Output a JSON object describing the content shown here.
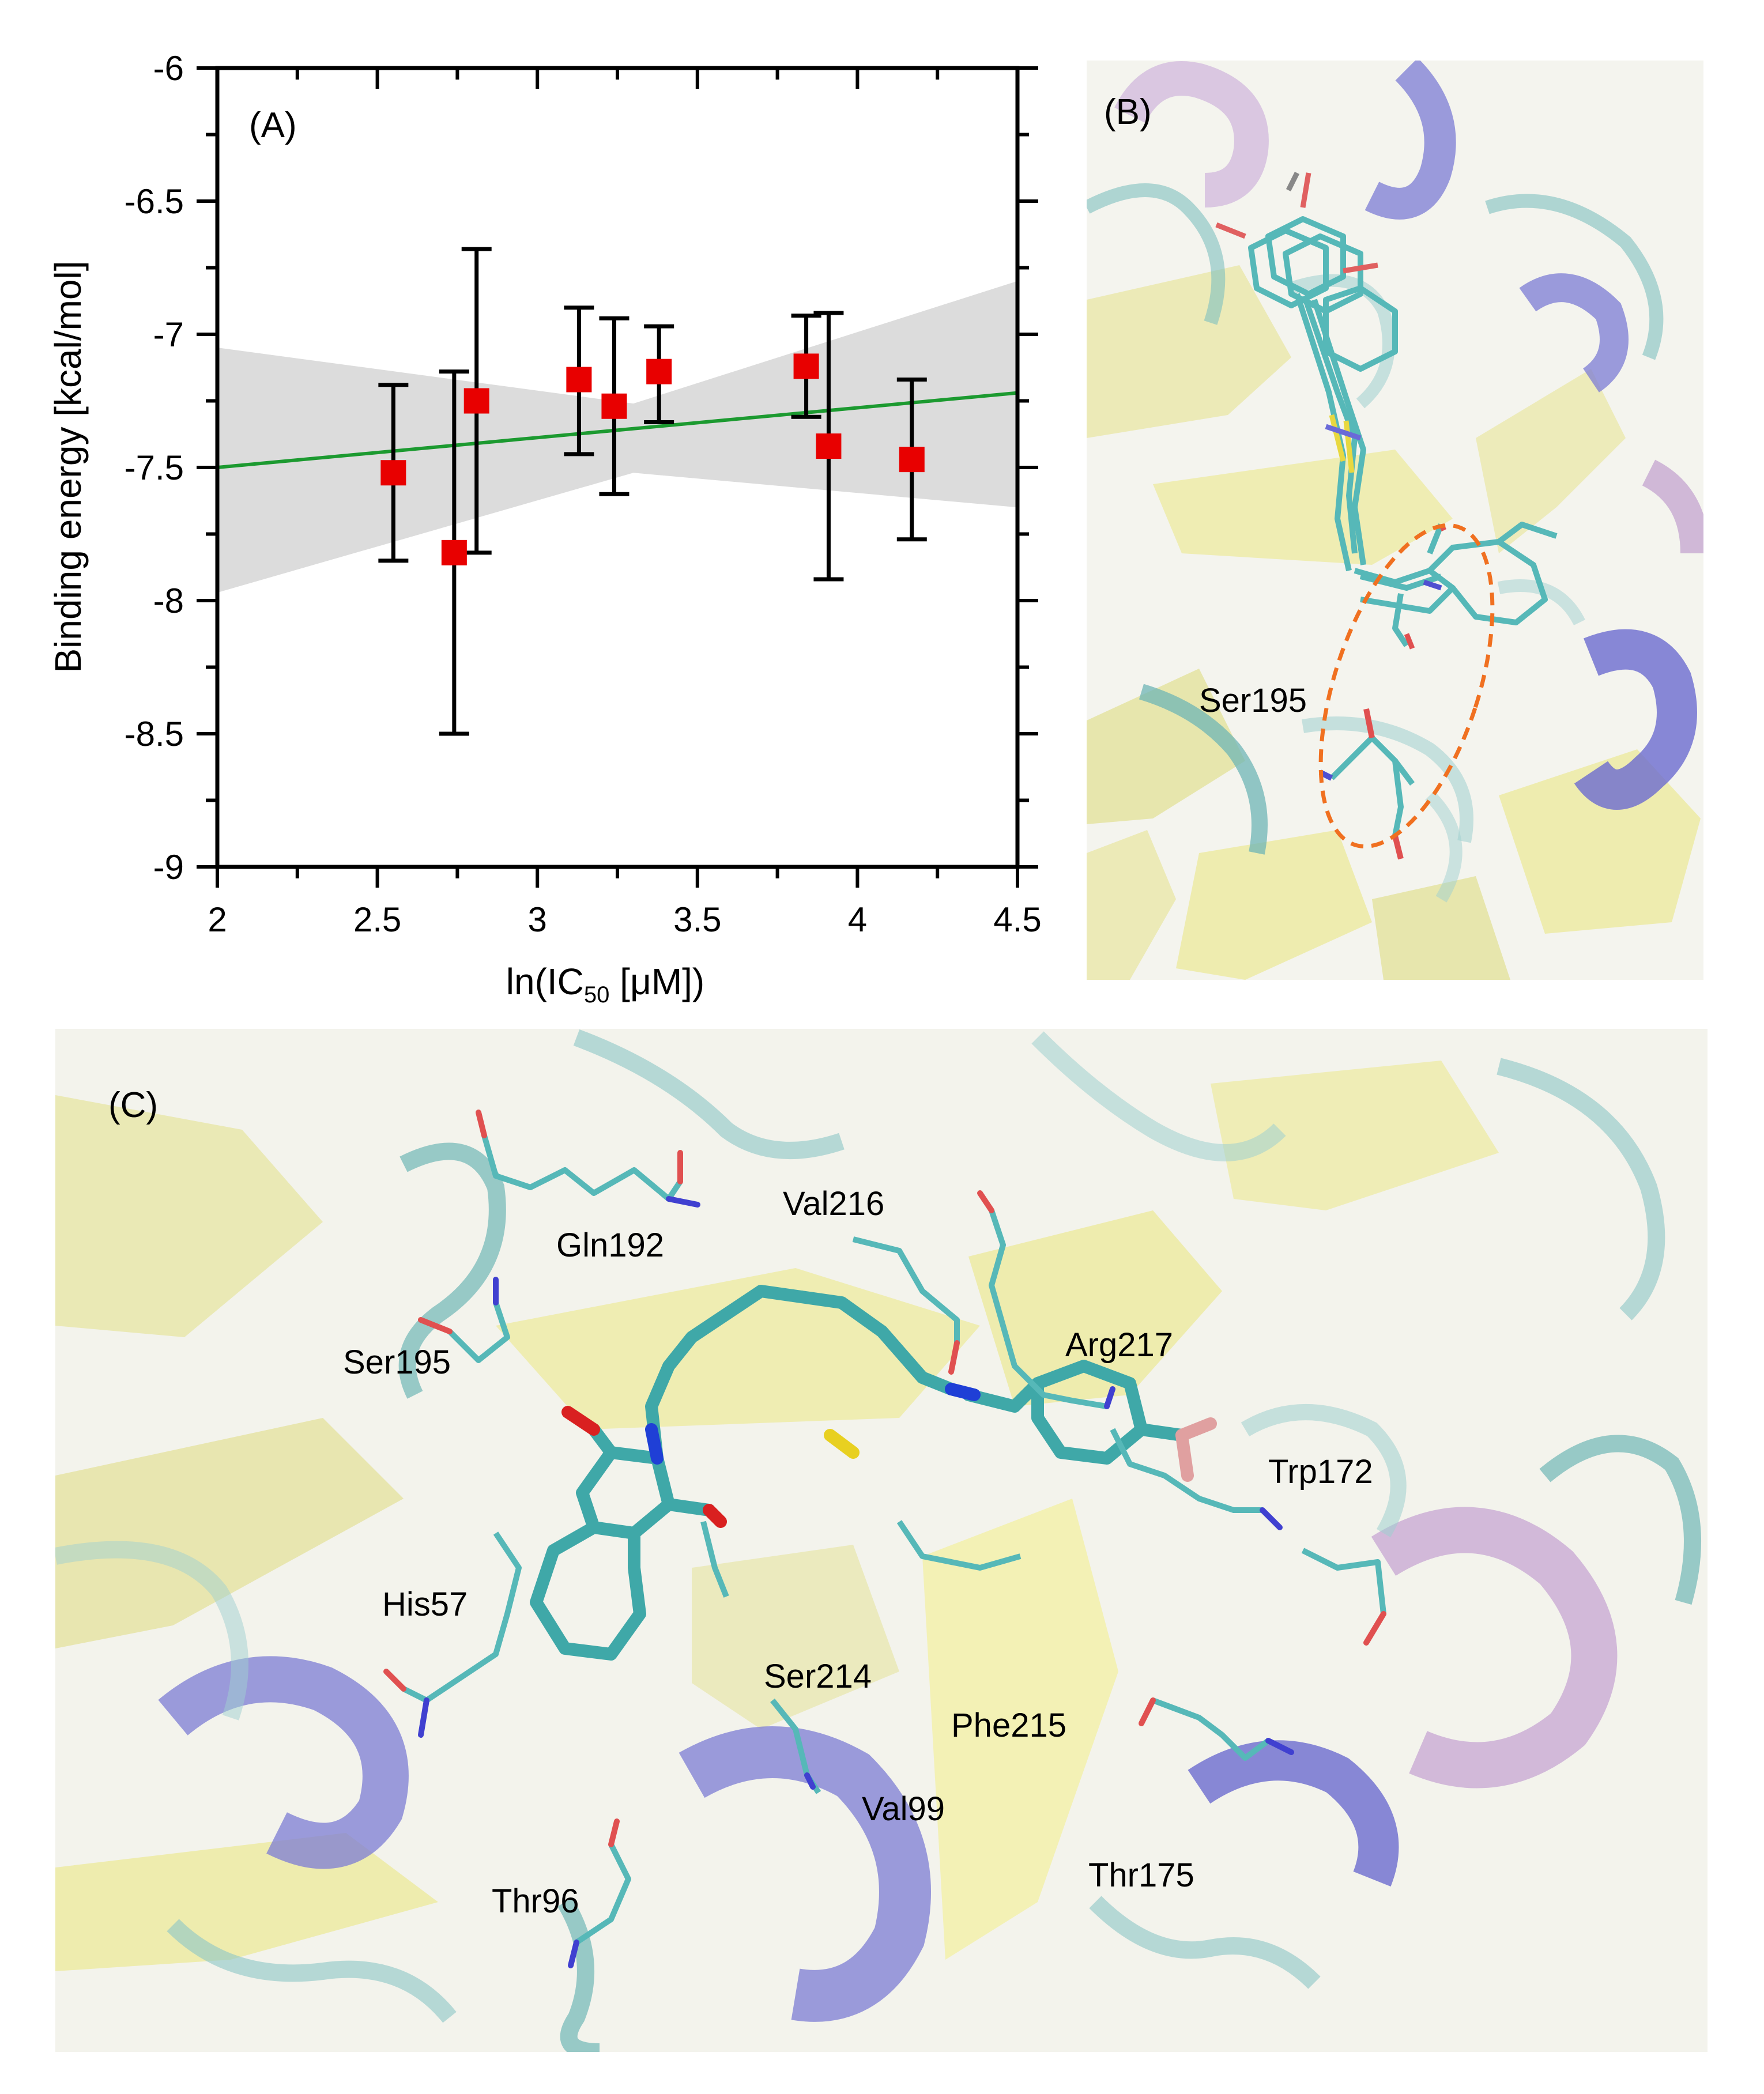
{
  "panels": {
    "a": {
      "label": "(A)"
    },
    "b": {
      "label": "(B)",
      "residue": "Ser195"
    },
    "c": {
      "label": "(C)",
      "residues": [
        "Gln192",
        "Val216",
        "Ser195",
        "Arg217",
        "Trp172",
        "His57",
        "Ser214",
        "Phe215",
        "Val99",
        "Thr96",
        "Thr175"
      ]
    }
  },
  "colors": {
    "marker": "#e80000",
    "fit_line": "#1c9a30",
    "confidence_band": "#dcdcdc",
    "errorbar": "#000000",
    "highlight_ellipse": "#f07020",
    "ligand": "#56b8b8",
    "helix": "#7070d0",
    "sheet": "#e8e890"
  },
  "chart_data": {
    "type": "scatter",
    "title": "",
    "xlabel_main": "ln(IC",
    "xlabel_sub": "50",
    "xlabel_tail": " [μM])",
    "ylabel": "Binding energy [kcal/mol]",
    "xlim": [
      2,
      4.5
    ],
    "ylim": [
      -9,
      -6
    ],
    "xticks": [
      2,
      2.5,
      3,
      3.5,
      4,
      4.5
    ],
    "xtick_labels": [
      "2",
      "2.5",
      "3",
      "3.5",
      "4",
      "4.5"
    ],
    "yticks": [
      -6,
      -6.5,
      -7,
      -7.5,
      -8,
      -8.5,
      -9
    ],
    "ytick_labels": [
      "-6",
      "-6.5",
      "-7",
      "-7.5",
      "-8",
      "-8.5",
      "-9"
    ],
    "grid": false,
    "points": [
      {
        "x": 2.55,
        "y": -7.52,
        "yerr_low": -7.85,
        "yerr_high": -7.19
      },
      {
        "x": 2.74,
        "y": -7.82,
        "yerr_low": -8.5,
        "yerr_high": -7.14
      },
      {
        "x": 2.81,
        "y": -7.25,
        "yerr_low": -7.82,
        "yerr_high": -6.68
      },
      {
        "x": 3.13,
        "y": -7.17,
        "yerr_low": -7.45,
        "yerr_high": -6.9
      },
      {
        "x": 3.24,
        "y": -7.27,
        "yerr_low": -7.6,
        "yerr_high": -6.94
      },
      {
        "x": 3.38,
        "y": -7.14,
        "yerr_low": -7.33,
        "yerr_high": -6.97
      },
      {
        "x": 3.84,
        "y": -7.12,
        "yerr_low": -7.31,
        "yerr_high": -6.93
      },
      {
        "x": 3.91,
        "y": -7.42,
        "yerr_low": -7.92,
        "yerr_high": -6.92
      },
      {
        "x": 4.17,
        "y": -7.47,
        "yerr_low": -7.77,
        "yerr_high": -7.17
      }
    ],
    "fit_line": {
      "x": [
        2,
        4.5
      ],
      "y": [
        -7.5,
        -7.22
      ]
    },
    "confidence_band": {
      "x": [
        2,
        3.3,
        4.5
      ],
      "upper": [
        -7.05,
        -7.26,
        -6.8
      ],
      "lower": [
        -7.97,
        -7.52,
        -7.65
      ]
    }
  }
}
